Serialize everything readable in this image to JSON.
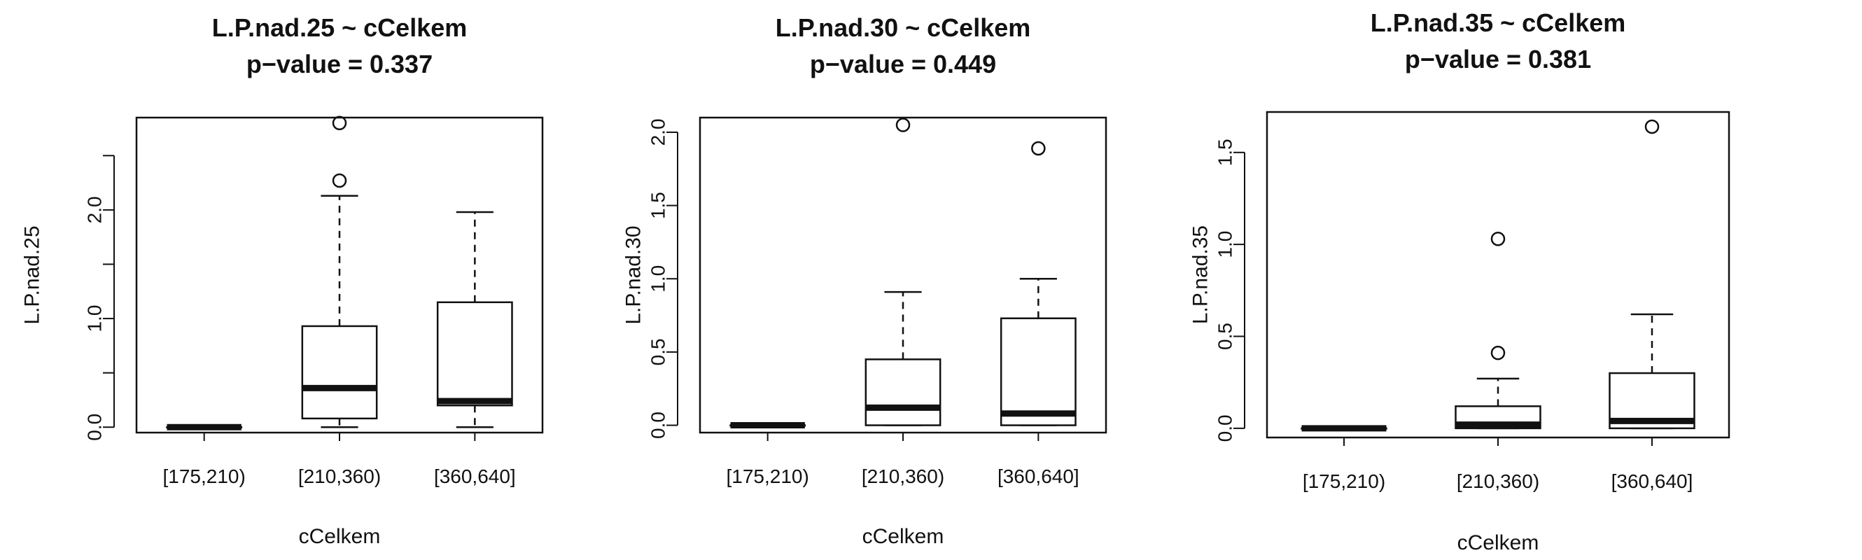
{
  "chart_data": [
    {
      "type": "box",
      "title": "L.P.nad.25 ~ cCelkem",
      "subtitle": "p−value = 0.337",
      "xlabel": "cCelkem",
      "ylabel": "L.P.nad.25",
      "ylim": [
        -0.05,
        2.85
      ],
      "yticks": [
        0.0,
        1.0,
        2.0
      ],
      "ytick_labels": [
        "0.0",
        "1.0",
        "2.0"
      ],
      "categories": [
        "[175,210)",
        "[210,360)",
        "[360,640]"
      ],
      "boxes": [
        {
          "whisker_low": 0.0,
          "q1": 0.0,
          "median": 0.0,
          "q3": 0.0,
          "whisker_high": 0.0,
          "outliers": []
        },
        {
          "whisker_low": 0.0,
          "q1": 0.08,
          "median": 0.36,
          "q3": 0.93,
          "whisker_high": 2.13,
          "outliers": [
            2.27,
            2.8
          ]
        },
        {
          "whisker_low": 0.0,
          "q1": 0.2,
          "median": 0.24,
          "q3": 1.15,
          "whisker_high": 1.98,
          "outliers": []
        }
      ]
    },
    {
      "type": "box",
      "title": "L.P.nad.30 ~ cCelkem",
      "subtitle": "p−value = 0.449",
      "xlabel": "cCelkem",
      "ylabel": "L.P.nad.30",
      "ylim": [
        -0.05,
        2.1
      ],
      "yticks": [
        0.0,
        0.5,
        1.0,
        1.5,
        2.0
      ],
      "ytick_labels": [
        "0.0",
        "0.5",
        "1.0",
        "1.5",
        "2.0"
      ],
      "categories": [
        "[175,210)",
        "[210,360)",
        "[360,640]"
      ],
      "boxes": [
        {
          "whisker_low": 0.0,
          "q1": 0.0,
          "median": 0.0,
          "q3": 0.0,
          "whisker_high": 0.0,
          "outliers": []
        },
        {
          "whisker_low": 0.0,
          "q1": 0.0,
          "median": 0.12,
          "q3": 0.45,
          "whisker_high": 0.91,
          "outliers": [
            2.05
          ]
        },
        {
          "whisker_low": 0.0,
          "q1": 0.0,
          "median": 0.08,
          "q3": 0.73,
          "whisker_high": 1.0,
          "outliers": [
            1.89
          ]
        }
      ]
    },
    {
      "type": "box",
      "title": "L.P.nad.35 ~ cCelkem",
      "subtitle": "p−value = 0.381",
      "xlabel": "cCelkem",
      "ylabel": "L.P.nad.35",
      "ylim": [
        -0.05,
        1.72
      ],
      "yticks": [
        0.0,
        0.5,
        1.0,
        1.5
      ],
      "ytick_labels": [
        "0.0",
        "0.5",
        "1.0",
        "1.5"
      ],
      "categories": [
        "[175,210)",
        "[210,360)",
        "[360,640]"
      ],
      "boxes": [
        {
          "whisker_low": 0.0,
          "q1": 0.0,
          "median": 0.0,
          "q3": 0.0,
          "whisker_high": 0.0,
          "outliers": []
        },
        {
          "whisker_low": 0.0,
          "q1": 0.0,
          "median": 0.02,
          "q3": 0.12,
          "whisker_high": 0.27,
          "outliers": [
            0.41,
            1.03
          ]
        },
        {
          "whisker_low": 0.0,
          "q1": 0.0,
          "median": 0.04,
          "q3": 0.3,
          "whisker_high": 0.62,
          "outliers": [
            1.64
          ]
        }
      ]
    }
  ]
}
